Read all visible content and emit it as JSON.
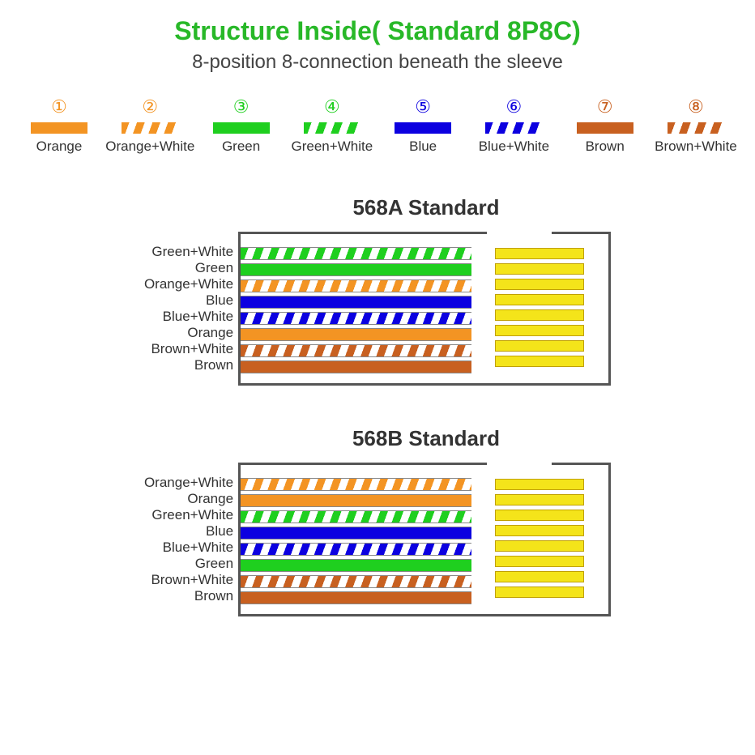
{
  "title": "Structure Inside( Standard 8P8C)",
  "title_color": "#28b828",
  "subtitle": "8-position 8-connection beneath the sleeve",
  "colors": {
    "orange": "#f39423",
    "green": "#1fcf1f",
    "blue": "#0c00e0",
    "brown": "#c86020",
    "yellow": "#f4e41a",
    "border": "#555555",
    "text": "#333333"
  },
  "legend": [
    {
      "num": "①",
      "label": "Orange",
      "color": "#f39423",
      "striped": false
    },
    {
      "num": "②",
      "label": "Orange+White",
      "color": "#f39423",
      "striped": true
    },
    {
      "num": "③",
      "label": "Green",
      "color": "#1fcf1f",
      "striped": false
    },
    {
      "num": "④",
      "label": "Green+White",
      "color": "#1fcf1f",
      "striped": true
    },
    {
      "num": "⑤",
      "label": "Blue",
      "color": "#0c00e0",
      "striped": false
    },
    {
      "num": "⑥",
      "label": "Blue+White",
      "color": "#0c00e0",
      "striped": true
    },
    {
      "num": "⑦",
      "label": "Brown",
      "color": "#c86020",
      "striped": false
    },
    {
      "num": "⑧",
      "label": "Brown+White",
      "color": "#c86020",
      "striped": true
    }
  ],
  "standards": [
    {
      "title": "568A Standard",
      "wires": [
        {
          "label": "Green+White",
          "color": "#1fcf1f",
          "striped": true
        },
        {
          "label": "Green",
          "color": "#1fcf1f",
          "striped": false
        },
        {
          "label": "Orange+White",
          "color": "#f39423",
          "striped": true
        },
        {
          "label": "Blue",
          "color": "#0c00e0",
          "striped": false
        },
        {
          "label": "Blue+White",
          "color": "#0c00e0",
          "striped": true
        },
        {
          "label": "Orange",
          "color": "#f39423",
          "striped": false
        },
        {
          "label": "Brown+White",
          "color": "#c86020",
          "striped": true
        },
        {
          "label": "Brown",
          "color": "#c86020",
          "striped": false
        }
      ]
    },
    {
      "title": "568B Standard",
      "wires": [
        {
          "label": "Orange+White",
          "color": "#f39423",
          "striped": true
        },
        {
          "label": "Orange",
          "color": "#f39423",
          "striped": false
        },
        {
          "label": "Green+White",
          "color": "#1fcf1f",
          "striped": true
        },
        {
          "label": "Blue",
          "color": "#0c00e0",
          "striped": false
        },
        {
          "label": "Blue+White",
          "color": "#0c00e0",
          "striped": true
        },
        {
          "label": "Green",
          "color": "#1fcf1f",
          "striped": false
        },
        {
          "label": "Brown+White",
          "color": "#c86020",
          "striped": true
        },
        {
          "label": "Brown",
          "color": "#c86020",
          "striped": false
        }
      ]
    }
  ]
}
